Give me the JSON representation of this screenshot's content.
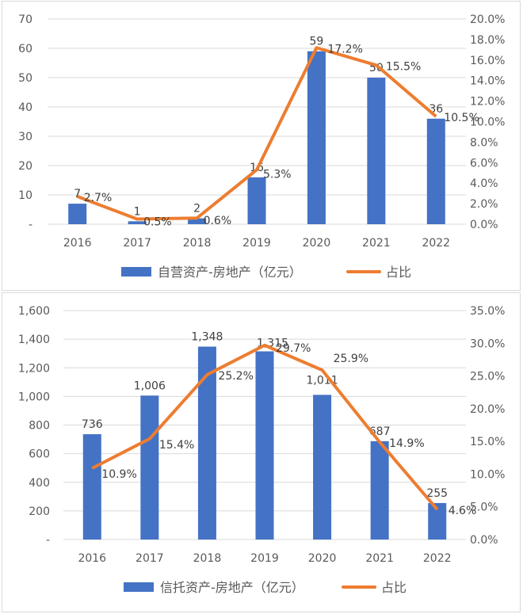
{
  "chart_data": [
    {
      "type": "bar+line",
      "categories": [
        "2016",
        "2017",
        "2018",
        "2019",
        "2020",
        "2021",
        "2022"
      ],
      "series": [
        {
          "name": "自营资产-房地产（亿元）",
          "type": "bar",
          "axis": "left",
          "values": [
            7,
            1,
            2,
            16,
            59,
            50,
            36
          ],
          "labels": [
            "7",
            "1",
            "2",
            "16",
            "59",
            "50",
            "36"
          ],
          "color": "#4472c4"
        },
        {
          "name": "占比",
          "type": "line",
          "axis": "right",
          "values": [
            2.7,
            0.5,
            0.6,
            5.3,
            17.2,
            15.5,
            10.5
          ],
          "labels": [
            "2.7%",
            "0.5%",
            "0.6%",
            "5.3%",
            "17.2%",
            "15.5%",
            "10.5%"
          ],
          "color": "#ed7d31"
        }
      ],
      "yleft": {
        "ylim": [
          0,
          70
        ],
        "ticks": [
          "-",
          "10",
          "20",
          "30",
          "40",
          "50",
          "60",
          "70"
        ]
      },
      "yright": {
        "ylim": [
          0,
          20
        ],
        "ticks": [
          "0.0%",
          "2.0%",
          "4.0%",
          "6.0%",
          "8.0%",
          "10.0%",
          "12.0%",
          "14.0%",
          "16.0%",
          "18.0%",
          "20.0%"
        ]
      },
      "grid": true,
      "legend": "bottom",
      "title": "",
      "xlabel": "",
      "ylabel": ""
    },
    {
      "type": "bar+line",
      "categories": [
        "2016",
        "2017",
        "2018",
        "2019",
        "2020",
        "2021",
        "2022"
      ],
      "series": [
        {
          "name": "信托资产-房地产（亿元）",
          "type": "bar",
          "axis": "left",
          "values": [
            736,
            1006,
            1348,
            1315,
            1011,
            687,
            255
          ],
          "labels": [
            "736",
            "1,006",
            "1,348",
            "1,315",
            "1,011",
            "687",
            "255"
          ],
          "color": "#4472c4"
        },
        {
          "name": "占比",
          "type": "line",
          "axis": "right",
          "values": [
            10.9,
            15.4,
            25.2,
            29.7,
            25.9,
            14.9,
            4.6
          ],
          "labels": [
            "10.9%",
            "15.4%",
            "25.2%",
            "29.7%",
            "25.9%",
            "14.9%",
            "4.6%"
          ],
          "color": "#ed7d31"
        }
      ],
      "yleft": {
        "ylim": [
          0,
          1600
        ],
        "ticks": [
          "-",
          "200",
          "400",
          "600",
          "800",
          "1,000",
          "1,200",
          "1,400",
          "1,600"
        ]
      },
      "yright": {
        "ylim": [
          0,
          35
        ],
        "ticks": [
          "0.0%",
          "5.0%",
          "10.0%",
          "15.0%",
          "20.0%",
          "25.0%",
          "30.0%",
          "35.0%"
        ]
      },
      "grid": true,
      "legend": "bottom",
      "title": "",
      "xlabel": "",
      "ylabel": ""
    }
  ]
}
